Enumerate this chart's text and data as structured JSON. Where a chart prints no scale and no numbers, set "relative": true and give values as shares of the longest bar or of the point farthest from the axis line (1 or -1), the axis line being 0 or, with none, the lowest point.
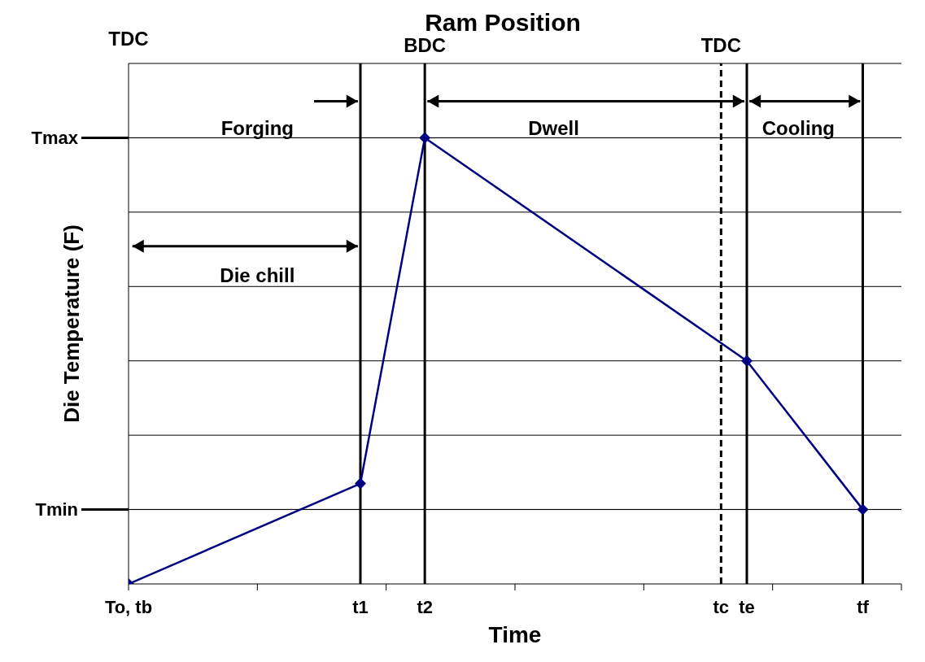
{
  "chart_data": {
    "type": "line",
    "title": "Ram Position",
    "xlabel": "Time",
    "ylabel": "Die Temperature (F)",
    "categories": [
      "To, tb",
      null,
      null,
      null,
      null,
      null,
      null,
      null,
      null,
      null,
      null,
      null,
      null,
      null,
      null,
      null,
      null,
      null,
      "t1",
      null,
      null,
      null,
      null,
      "t2",
      null,
      null,
      null,
      null,
      null,
      null,
      null,
      null,
      null,
      null,
      null,
      null,
      null,
      null,
      null,
      null,
      null,
      null,
      null,
      null,
      null,
      null,
      "tc",
      null,
      "te",
      null,
      null,
      null,
      null,
      null,
      null,
      null,
      null,
      "tf",
      null,
      null,
      null
    ],
    "relative": true,
    "series": [
      {
        "color": "#000080",
        "x": [
          "To, tb",
          "t1",
          "t2",
          "te",
          "tf"
        ],
        "values": [
          0,
          0.225,
          1,
          0.5,
          0.167
        ]
      }
    ],
    "grid": "y",
    "marker": "diamond",
    "line_style": "solid",
    "ref_lines": [
      {
        "axis": "y",
        "value": 1,
        "label": "Tmax",
        "color": "#000000",
        "line_style": "solid"
      },
      {
        "axis": "y",
        "value": 0.167,
        "label": "Tmin",
        "color": "#000000",
        "line_style": "solid"
      },
      {
        "axis": "x",
        "value": "t1",
        "label": null,
        "color": "#000000",
        "line_style": "solid"
      },
      {
        "axis": "x",
        "value": "t2",
        "label": "BDC",
        "color": "#000000",
        "line_style": "solid"
      },
      {
        "axis": "x",
        "value": "tc",
        "label": "TDC",
        "color": "#000000",
        "line_style": "dashed"
      },
      {
        "axis": "x",
        "value": "te",
        "label": null,
        "color": "#000000",
        "line_style": "solid"
      },
      {
        "axis": "x",
        "value": "tf",
        "label": null,
        "color": "#000000",
        "line_style": "solid"
      }
    ],
    "annotations": [
      "TDC",
      "Forging",
      "Dwell",
      "Cooling",
      "Die chill"
    ]
  }
}
